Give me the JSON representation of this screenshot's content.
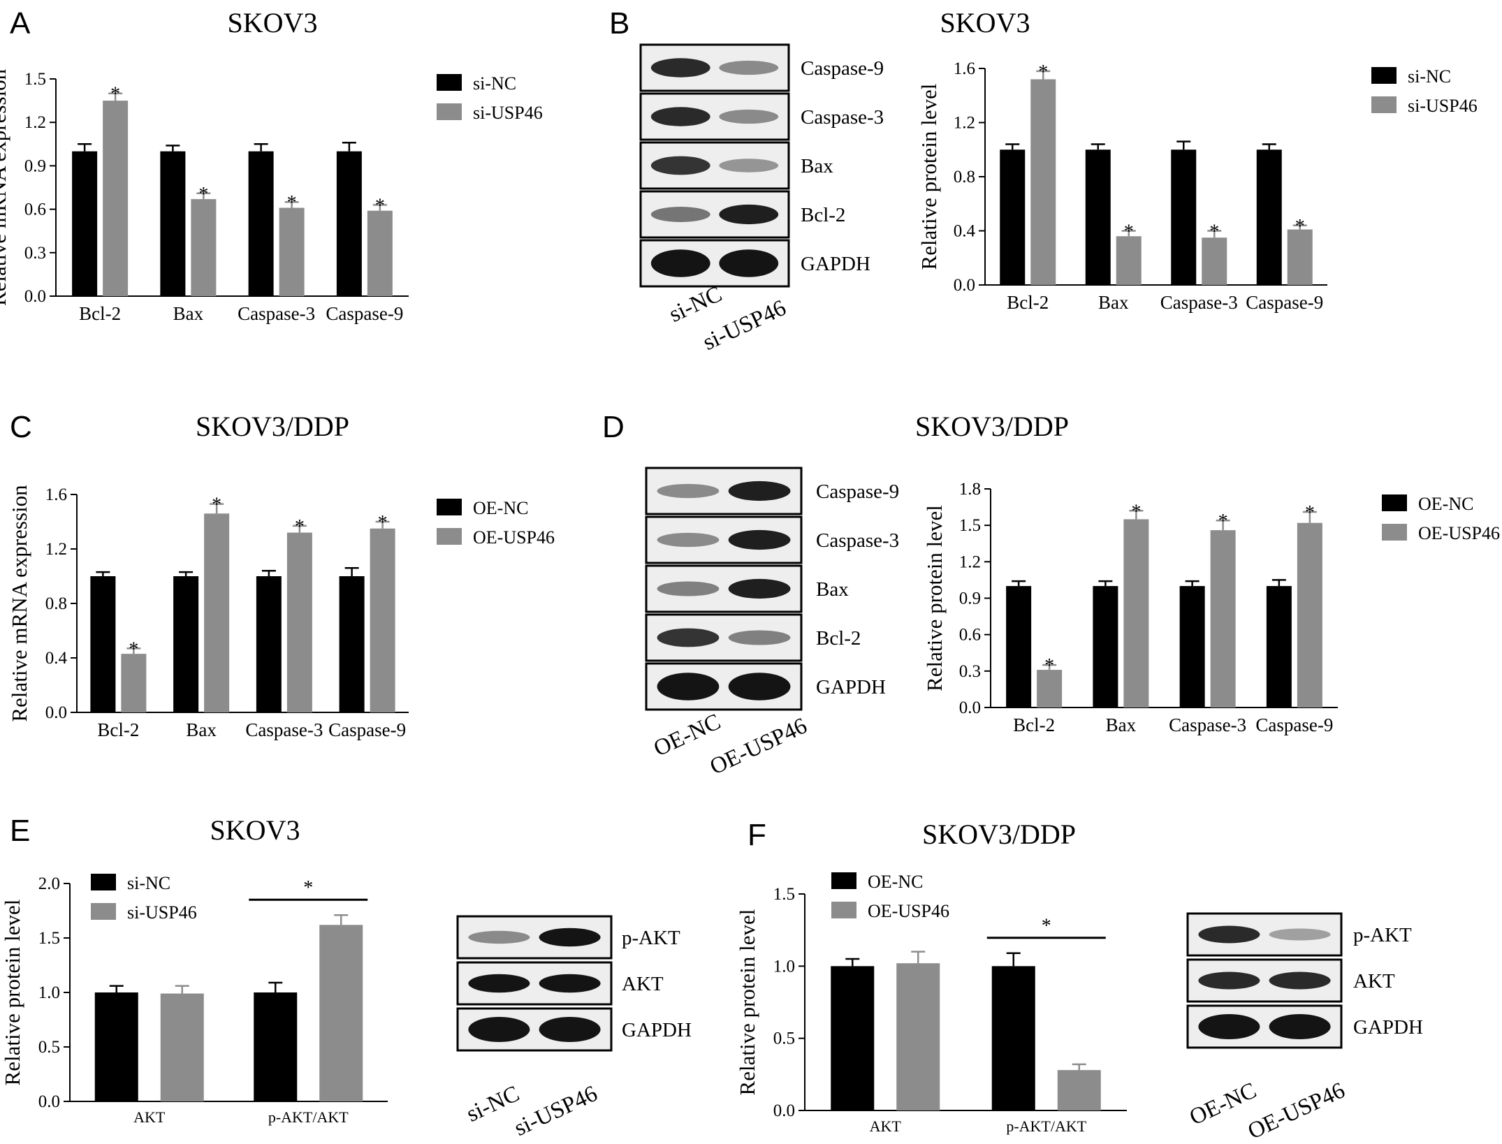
{
  "colors": {
    "nc": "#000000",
    "treat": "#8c8c8c"
  },
  "panels": [
    {
      "label": "A",
      "title": "SKOV3",
      "chart_data": {
        "type": "bar",
        "title": "SKOV3",
        "ylabel": "Relative mRNA expression",
        "categories": [
          "Bcl-2",
          "Bax",
          "Caspase-3",
          "Caspase-9"
        ],
        "ylim": [
          0,
          1.5
        ],
        "ticks": [
          "0.0",
          "0.3",
          "0.6",
          "0.9",
          "1.2",
          "1.5"
        ],
        "legend": "right",
        "series": [
          {
            "name": "si-NC",
            "values": [
              1.0,
              1.0,
              1.0,
              1.0
            ],
            "err": [
              0.05,
              0.04,
              0.05,
              0.06
            ]
          },
          {
            "name": "si-USP46",
            "values": [
              1.35,
              0.67,
              0.61,
              0.59
            ],
            "err": [
              0.05,
              0.04,
              0.04,
              0.04
            ]
          }
        ],
        "stars": [
          "*",
          "*",
          "*",
          "*"
        ]
      }
    },
    {
      "label": "B",
      "title": "SKOV3",
      "blot": {
        "bands": [
          "Caspase-9",
          "Caspase-3",
          "Bax",
          "Bcl-2",
          "GAPDH"
        ],
        "lanes": [
          "si-NC",
          "si-USP46"
        ]
      },
      "chart_data": {
        "type": "bar",
        "title": "SKOV3",
        "ylabel": "Relative protein level",
        "categories": [
          "Bcl-2",
          "Bax",
          "Caspase-3",
          "Caspase-9"
        ],
        "ylim": [
          0,
          1.6
        ],
        "ticks": [
          "0.0",
          "0.4",
          "0.8",
          "1.2",
          "1.6"
        ],
        "legend": "right",
        "series": [
          {
            "name": "si-NC",
            "values": [
              1.0,
              1.0,
              1.0,
              1.0
            ],
            "err": [
              0.04,
              0.04,
              0.06,
              0.04
            ]
          },
          {
            "name": "si-USP46",
            "values": [
              1.52,
              0.36,
              0.35,
              0.41
            ],
            "err": [
              0.06,
              0.04,
              0.05,
              0.03
            ]
          }
        ],
        "stars": [
          "*",
          "*",
          "*",
          "*"
        ]
      }
    },
    {
      "label": "C",
      "title": "SKOV3/DDP",
      "chart_data": {
        "type": "bar",
        "title": "SKOV3/DDP",
        "ylabel": "Relative mRNA expression",
        "categories": [
          "Bcl-2",
          "Bax",
          "Caspase-3",
          "Caspase-9"
        ],
        "ylim": [
          0,
          1.6
        ],
        "ticks": [
          "0.0",
          "0.4",
          "0.8",
          "1.2",
          "1.6"
        ],
        "legend": "right",
        "series": [
          {
            "name": "OE-NC",
            "values": [
              1.0,
              1.0,
              1.0,
              1.0
            ],
            "err": [
              0.03,
              0.03,
              0.04,
              0.06
            ]
          },
          {
            "name": "OE-USP46",
            "values": [
              0.43,
              1.46,
              1.32,
              1.35
            ],
            "err": [
              0.04,
              0.07,
              0.05,
              0.05
            ]
          }
        ],
        "stars": [
          "*",
          "*",
          "*",
          "*"
        ]
      }
    },
    {
      "label": "D",
      "title": "SKOV3/DDP",
      "blot": {
        "bands": [
          "Caspase-9",
          "Caspase-3",
          "Bax",
          "Bcl-2",
          "GAPDH"
        ],
        "lanes": [
          "OE-NC",
          "OE-USP46"
        ]
      },
      "chart_data": {
        "type": "bar",
        "title": "SKOV3/DDP",
        "ylabel": "Relative protein level",
        "categories": [
          "Bcl-2",
          "Bax",
          "Caspase-3",
          "Caspase-9"
        ],
        "ylim": [
          0,
          1.8
        ],
        "ticks": [
          "0.0",
          "0.3",
          "0.6",
          "0.9",
          "1.2",
          "1.5",
          "1.8"
        ],
        "legend": "right",
        "series": [
          {
            "name": "OE-NC",
            "values": [
              1.0,
              1.0,
              1.0,
              1.0
            ],
            "err": [
              0.04,
              0.04,
              0.04,
              0.05
            ]
          },
          {
            "name": "OE-USP46",
            "values": [
              0.31,
              1.55,
              1.46,
              1.52
            ],
            "err": [
              0.04,
              0.07,
              0.08,
              0.09
            ]
          }
        ],
        "stars": [
          "*",
          "*",
          "*",
          "*"
        ]
      }
    },
    {
      "label": "E",
      "title": "SKOV3",
      "blot": {
        "bands": [
          "p-AKT",
          "AKT",
          "GAPDH"
        ],
        "lanes": [
          "si-NC",
          "si-USP46"
        ]
      },
      "chart_data": {
        "type": "bar",
        "title": "SKOV3",
        "ylabel": "Relative protein level",
        "categories": [
          "AKT",
          "p-AKT/AKT"
        ],
        "ylim": [
          0,
          2.0
        ],
        "ticks": [
          "0.0",
          "0.5",
          "1.0",
          "1.5",
          "2.0"
        ],
        "legend": "top-left",
        "series": [
          {
            "name": "si-NC",
            "values": [
              1.0,
              1.0
            ],
            "err": [
              0.06,
              0.09
            ]
          },
          {
            "name": "si-USP46",
            "values": [
              0.99,
              1.62
            ],
            "err": [
              0.07,
              0.09
            ]
          }
        ],
        "bracket": {
          "category": 1,
          "label": "*"
        }
      }
    },
    {
      "label": "F",
      "title": "SKOV3/DDP",
      "blot": {
        "bands": [
          "p-AKT",
          "AKT",
          "GAPDH"
        ],
        "lanes": [
          "OE-NC",
          "OE-USP46"
        ]
      },
      "chart_data": {
        "type": "bar",
        "title": "SKOV3/DDP",
        "ylabel": "Relative protein level",
        "categories": [
          "AKT",
          "p-AKT/AKT"
        ],
        "ylim": [
          0,
          1.5
        ],
        "ticks": [
          "0.0",
          "0.5",
          "1.0",
          "1.5"
        ],
        "legend": "top-left",
        "series": [
          {
            "name": "OE-NC",
            "values": [
              1.0,
              1.0
            ],
            "err": [
              0.05,
              0.09
            ]
          },
          {
            "name": "OE-USP46",
            "values": [
              1.02,
              0.28
            ],
            "err": [
              0.08,
              0.04
            ]
          }
        ],
        "bracket": {
          "category": 1,
          "label": "*"
        }
      }
    }
  ]
}
